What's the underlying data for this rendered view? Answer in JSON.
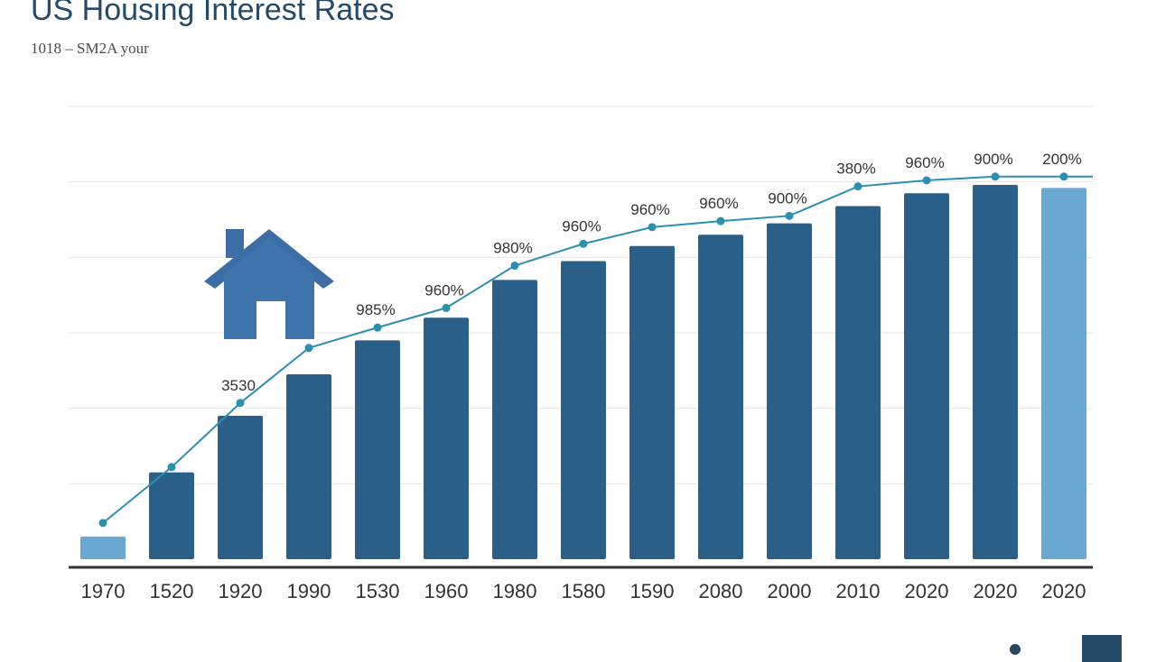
{
  "header": {
    "title": "US Housing Interest Rates",
    "subtitle": "1018 – SM2A your"
  },
  "colors": {
    "bar": "#2a5f8a",
    "bar_highlight": "#6aa7d2",
    "line": "#2a8fb0",
    "axis": "#333333",
    "grid": "#e6e6e6",
    "house": "#3f74ad"
  },
  "icons": [
    "house-icon"
  ],
  "chart_data": {
    "type": "bar",
    "title": "US Housing Interest Rates",
    "subtitle": "1018 – SM2A your",
    "xlabel": "",
    "ylabel": "",
    "ylim": [
      0,
      6
    ],
    "grid": true,
    "categories": [
      "1970",
      "1520",
      "1920",
      "1990",
      "1530",
      "1960",
      "1980",
      "1580",
      "1590",
      "2080",
      "2000",
      "2010",
      "2020",
      "2020",
      "2020"
    ],
    "highlighted": [
      0,
      14
    ],
    "series": [
      {
        "type": "bar",
        "values": [
          0.3,
          1.15,
          1.9,
          2.45,
          2.9,
          3.2,
          3.7,
          3.95,
          4.15,
          4.3,
          4.45,
          4.68,
          4.85,
          4.96,
          4.92
        ]
      },
      {
        "type": "line",
        "values": [
          0.48,
          1.22,
          2.07,
          2.8,
          3.07,
          3.33,
          3.89,
          4.18,
          4.4,
          4.48,
          4.55,
          4.94,
          5.02,
          5.07,
          5.07
        ]
      }
    ],
    "data_labels": [
      "",
      "",
      "3530",
      "",
      "985%",
      "960%",
      "980%",
      "960%",
      "960%",
      "960%",
      "900%",
      "380%",
      "960%",
      "900%",
      "200%"
    ]
  }
}
